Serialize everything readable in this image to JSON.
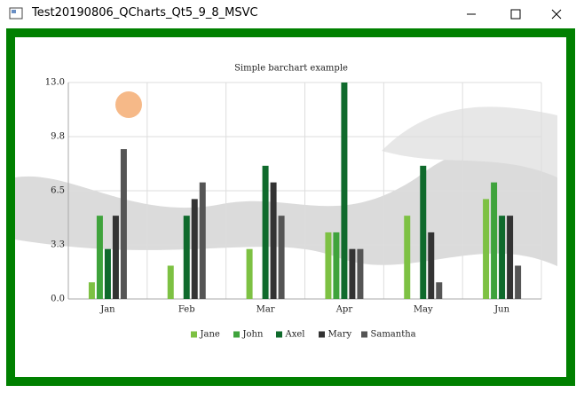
{
  "window": {
    "title": "Test20190806_QCharts_Qt5_9_8_MSVC"
  },
  "chart_data": {
    "type": "bar",
    "title": "Simple barchart example",
    "categories": [
      "Jan",
      "Feb",
      "Mar",
      "Apr",
      "May",
      "Jun"
    ],
    "series": [
      {
        "name": "Jane",
        "color": "#7dc143",
        "values": [
          1,
          2,
          3,
          4,
          5,
          6
        ]
      },
      {
        "name": "John",
        "color": "#3fa33c",
        "values": [
          5,
          0,
          0,
          4,
          0,
          7
        ]
      },
      {
        "name": "Axel",
        "color": "#0f6a2c",
        "values": [
          3,
          5,
          8,
          13,
          8,
          5
        ]
      },
      {
        "name": "Mary",
        "color": "#333333",
        "values": [
          5,
          6,
          7,
          3,
          4,
          5
        ]
      },
      {
        "name": "Samantha",
        "color": "#555555",
        "values": [
          9,
          7,
          5,
          3,
          1,
          2
        ]
      }
    ],
    "ylim": [
      0,
      13
    ],
    "yticks": [
      {
        "value": 0,
        "label": "0.0"
      },
      {
        "value": 3.25,
        "label": "3.3"
      },
      {
        "value": 6.5,
        "label": "6.5"
      },
      {
        "value": 9.75,
        "label": "9.8"
      },
      {
        "value": 13,
        "label": "13.0"
      }
    ],
    "grid": true,
    "legend": "bottom"
  }
}
